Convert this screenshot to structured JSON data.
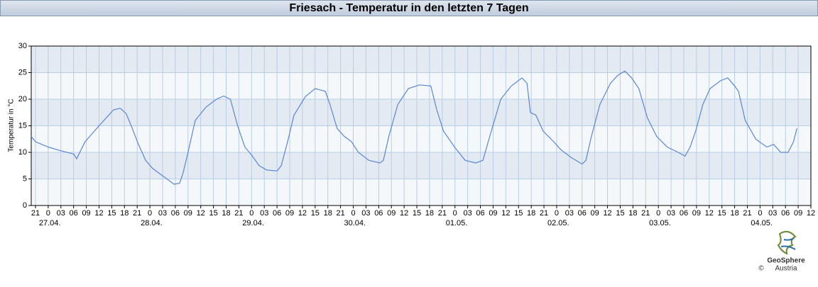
{
  "chart_data": {
    "type": "line",
    "title": "Friesach - Temperatur in den letzten 7 Tagen",
    "y_label": "Temperatur in °C",
    "xlim": [
      -4,
      180
    ],
    "ylim": [
      0,
      30
    ],
    "yticks": [
      0,
      5,
      10,
      15,
      20,
      25,
      30
    ],
    "grid": true,
    "xticks": [
      {
        "value": -3,
        "label": "21"
      },
      0,
      {
        "value": 3,
        "label": "03"
      },
      {
        "value": 6,
        "label": "06"
      },
      {
        "value": 9,
        "label": "09"
      },
      {
        "value": 12,
        "label": "12"
      },
      {
        "value": 15,
        "label": "15"
      },
      {
        "value": 18,
        "label": "18"
      },
      {
        "value": 21,
        "label": "21"
      },
      {
        "value": 24,
        "label": "0"
      },
      {
        "value": 27,
        "label": "03"
      },
      {
        "value": 30,
        "label": "06"
      },
      {
        "value": 33,
        "label": "09"
      },
      {
        "value": 36,
        "label": "12"
      },
      {
        "value": 39,
        "label": "15"
      },
      {
        "value": 42,
        "label": "18"
      },
      {
        "value": 45,
        "label": "21"
      },
      {
        "value": 48,
        "label": "0"
      },
      {
        "value": 51,
        "label": "03"
      },
      {
        "value": 54,
        "label": "06"
      },
      {
        "value": 57,
        "label": "09"
      },
      {
        "value": 60,
        "label": "12"
      },
      {
        "value": 63,
        "label": "15"
      },
      {
        "value": 66,
        "label": "18"
      },
      {
        "value": 69,
        "label": "21"
      },
      {
        "value": 72,
        "label": "0"
      },
      {
        "value": 75,
        "label": "03"
      },
      {
        "value": 78,
        "label": "06"
      },
      {
        "value": 81,
        "label": "09"
      },
      {
        "value": 84,
        "label": "12"
      },
      {
        "value": 87,
        "label": "15"
      },
      {
        "value": 90,
        "label": "18"
      },
      {
        "value": 93,
        "label": "21"
      },
      {
        "value": 96,
        "label": "0"
      },
      {
        "value": 99,
        "label": "03"
      },
      {
        "value": 102,
        "label": "06"
      },
      {
        "value": 105,
        "label": "09"
      },
      {
        "value": 108,
        "label": "12"
      },
      {
        "value": 111,
        "label": "15"
      },
      {
        "value": 114,
        "label": "18"
      },
      {
        "value": 117,
        "label": "21"
      },
      {
        "value": 120,
        "label": "0"
      },
      {
        "value": 123,
        "label": "03"
      },
      {
        "value": 126,
        "label": "06"
      },
      {
        "value": 129,
        "label": "09"
      },
      {
        "value": 132,
        "label": "12"
      },
      {
        "value": 135,
        "label": "15"
      },
      {
        "value": 138,
        "label": "18"
      },
      {
        "value": 141,
        "label": "21"
      },
      {
        "value": 144,
        "label": "0"
      },
      {
        "value": 147,
        "label": "03"
      },
      {
        "value": 150,
        "label": "06"
      },
      {
        "value": 153,
        "label": "09"
      },
      {
        "value": 156,
        "label": "12"
      },
      {
        "value": 159,
        "label": "15"
      },
      {
        "value": 162,
        "label": "18"
      },
      {
        "value": 165,
        "label": "21"
      },
      {
        "value": 168,
        "label": "0"
      },
      {
        "value": 171,
        "label": "03"
      },
      {
        "value": 174,
        "label": "06"
      },
      {
        "value": 177,
        "label": "09"
      },
      {
        "value": 180,
        "label": "12"
      }
    ],
    "date_labels": [
      {
        "value": 0,
        "label": "27.04."
      },
      {
        "value": 24,
        "label": "28.04."
      },
      {
        "value": 48,
        "label": "29.04."
      },
      {
        "value": 72,
        "label": "30.04."
      },
      {
        "value": 96,
        "label": "01.05."
      },
      {
        "value": 120,
        "label": "02.05."
      },
      {
        "value": 144,
        "label": "03.05."
      },
      {
        "value": 168,
        "label": "04.05."
      }
    ],
    "x": [
      -4,
      -3,
      0,
      3,
      6,
      6.7,
      8.7,
      12,
      13.7,
      15.4,
      17,
      18.4,
      19.6,
      21.3,
      23,
      24.6,
      26.3,
      28,
      29.7,
      31,
      31.8,
      33,
      34.7,
      37.2,
      39.7,
      41.4,
      43,
      44.7,
      46.4,
      48,
      49.8,
      51.5,
      54,
      55,
      56.5,
      58,
      60.7,
      63,
      65.4,
      66.5,
      68.2,
      69.9,
      71.6,
      73.2,
      75.7,
      78.3,
      79.1,
      80.4,
      82.5,
      85,
      87.6,
      90.3,
      91.7,
      93.3,
      95.9,
      98.4,
      100.9,
      102.6,
      104.2,
      106.8,
      109.3,
      111.8,
      113,
      113.8,
      115.1,
      116.8,
      119.3,
      121,
      123.5,
      126,
      126.9,
      128.2,
      130.2,
      132.7,
      134.4,
      136.1,
      137.7,
      139.4,
      141.4,
      143.6,
      146.1,
      148.7,
      150.3,
      151.5,
      152.8,
      154.5,
      156.2,
      158.7,
      160.4,
      162,
      162.9,
      164.5,
      167,
      169.6,
      171.2,
      172.9,
      174.6,
      175.9,
      176.7
    ],
    "series": [
      {
        "color": "#5a86d8",
        "values": [
          13,
          12,
          11,
          10.3,
          9.7,
          8.8,
          12,
          15,
          16.5,
          18,
          18.3,
          17.3,
          15,
          11.5,
          8.5,
          7,
          6,
          5,
          4,
          4.2,
          6,
          10,
          16,
          18.5,
          20,
          20.6,
          20,
          15,
          11,
          9.5,
          7.5,
          6.7,
          6.5,
          7.5,
          12,
          17,
          20.5,
          22,
          21.5,
          19,
          14.5,
          13,
          12,
          10,
          8.5,
          8,
          8.5,
          13,
          19,
          22,
          22.7,
          22.5,
          18,
          14,
          11,
          8.5,
          8,
          8.5,
          13,
          20,
          22.5,
          24,
          23,
          17.5,
          17,
          14,
          12,
          10.5,
          9,
          7.8,
          8.5,
          13,
          19,
          23,
          24.5,
          25.3,
          24,
          22,
          16.5,
          13,
          11,
          10,
          9.3,
          11,
          14,
          19,
          22,
          23.5,
          24,
          22.5,
          21.5,
          16,
          12.5,
          11,
          11.5,
          10,
          10,
          12,
          14.5
        ]
      }
    ]
  },
  "logo": {
    "name": "GeoSphere",
    "country": "Austria",
    "copyright": "©"
  }
}
